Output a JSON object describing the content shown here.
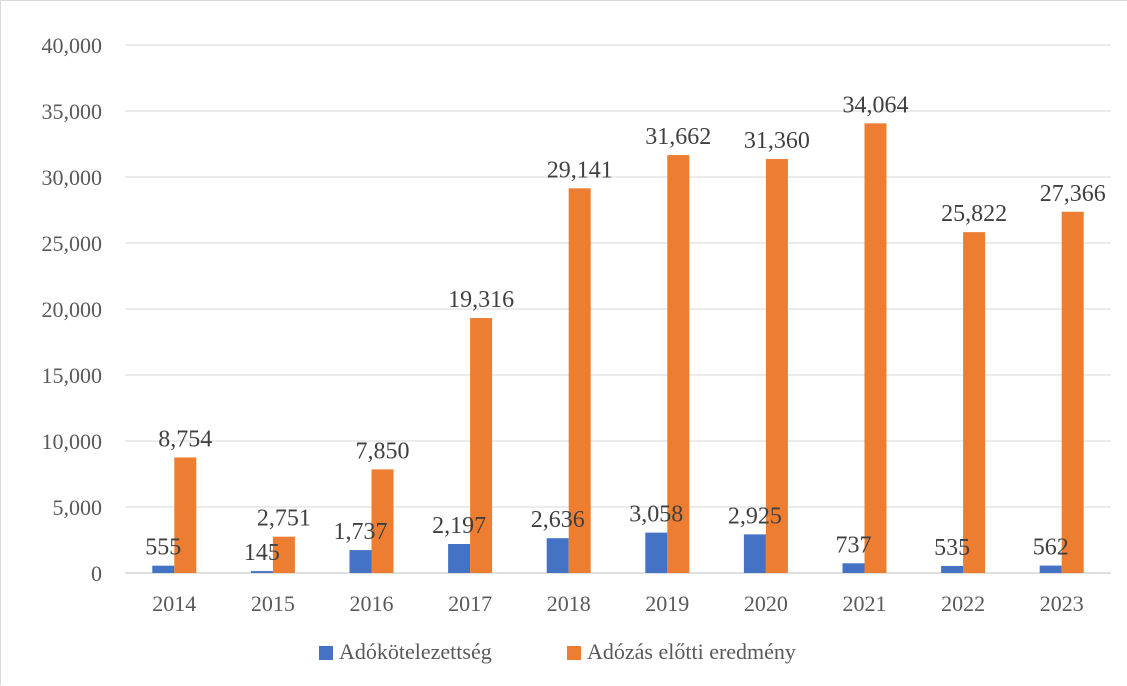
{
  "chart_data": {
    "type": "bar",
    "title": "",
    "xlabel": "",
    "ylabel": "",
    "categories": [
      "2014",
      "2015",
      "2016",
      "2017",
      "2018",
      "2019",
      "2020",
      "2021",
      "2022",
      "2023"
    ],
    "ylim": [
      0,
      40000
    ],
    "yticks": [
      0,
      5000,
      10000,
      15000,
      20000,
      25000,
      30000,
      35000,
      40000
    ],
    "ytick_labels": [
      "0",
      "5,000",
      "10,000",
      "15,000",
      "20,000",
      "25,000",
      "30,000",
      "35,000",
      "40,000"
    ],
    "grid": "horizontal",
    "legend_position": "bottom",
    "series": [
      {
        "name": "Adókötelezettség",
        "color": "#4472C4",
        "values": [
          555,
          145,
          1737,
          2197,
          2636,
          3058,
          2925,
          737,
          535,
          562
        ],
        "labels": [
          "555",
          "145",
          "1,737",
          "2,197",
          "2,636",
          "3,058",
          "2,925",
          "737",
          "535",
          "562"
        ]
      },
      {
        "name": "Adózás előtti eredmény",
        "color": "#ED7D31",
        "values": [
          8754,
          2751,
          7850,
          19316,
          29141,
          31662,
          31360,
          34064,
          25822,
          27366
        ],
        "labels": [
          "8,754",
          "2,751",
          "7,850",
          "19,316",
          "29,141",
          "31,662",
          "31,360",
          "34,064",
          "25,822",
          "27,366"
        ]
      }
    ]
  }
}
